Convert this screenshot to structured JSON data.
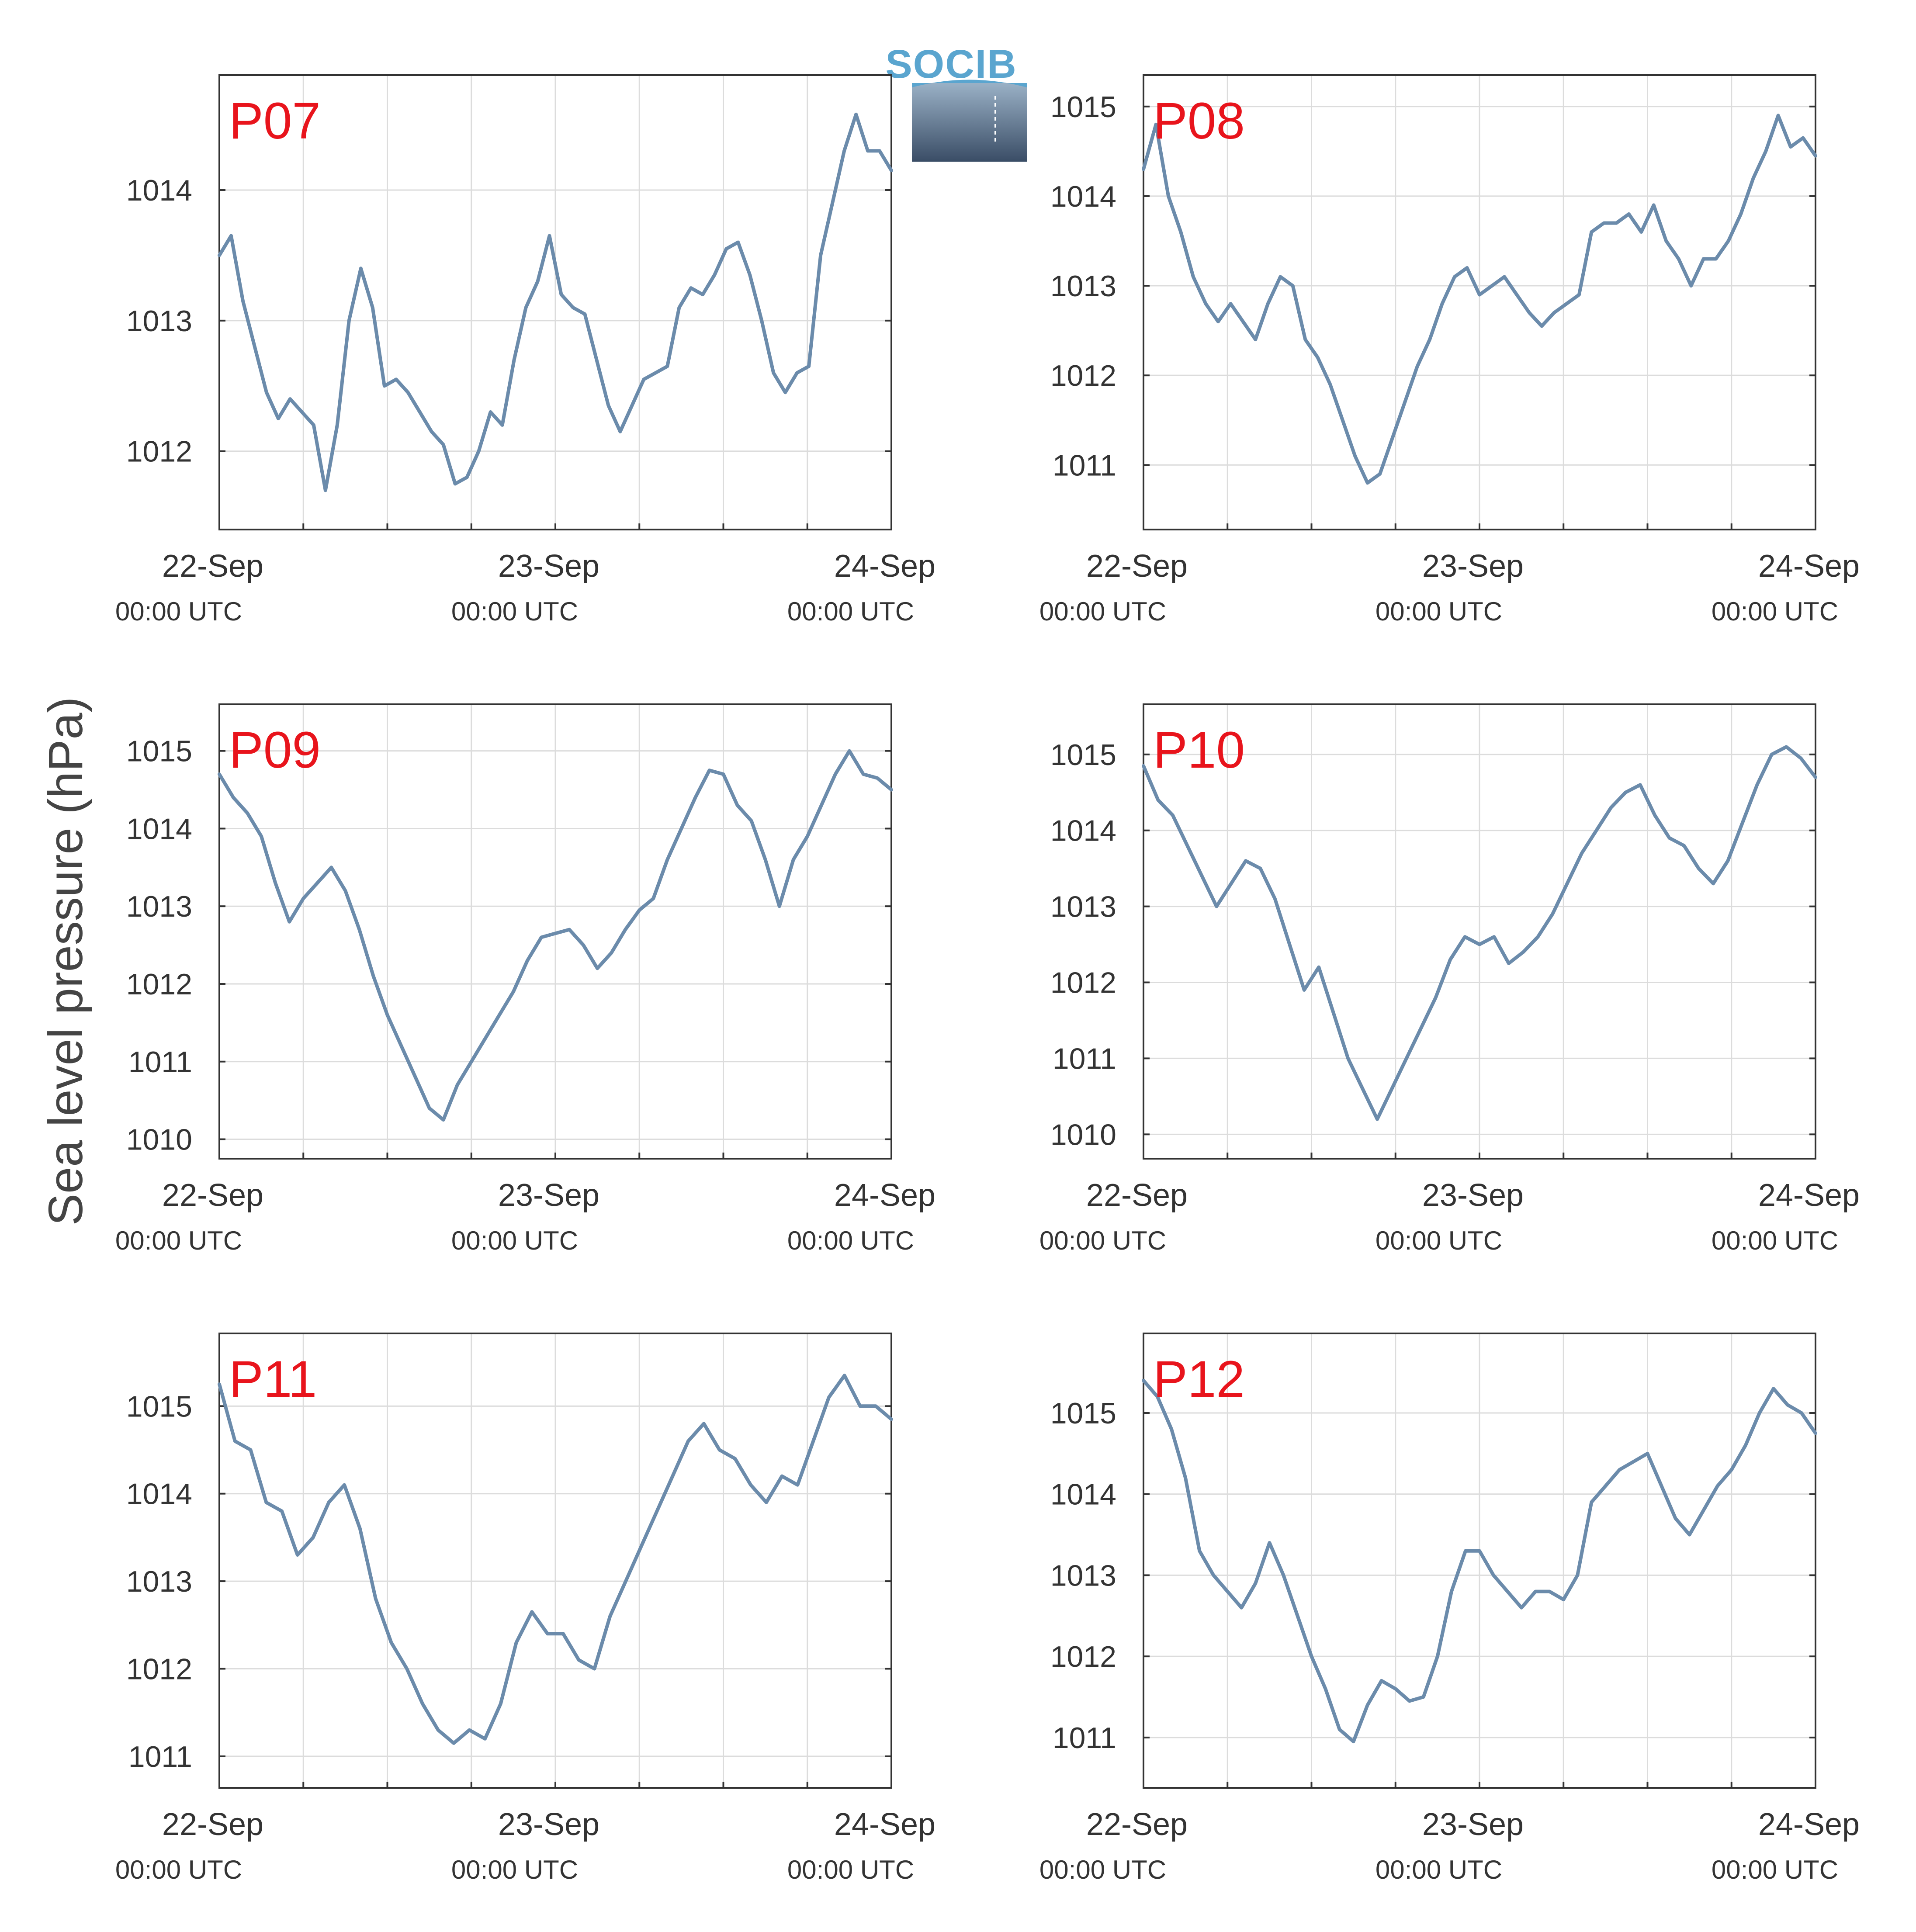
{
  "colors": {
    "series": "#6b8bab",
    "station_label": "#e8141c",
    "grid": "#dcdcdc",
    "axis": "#333333",
    "logo_text": "#5aa5cf",
    "logo_gradient_top": "#9ab1c6",
    "logo_gradient_bottom": "#3a4d66"
  },
  "logo": {
    "text": "SOCIB"
  },
  "ylabel": "Sea level pressure (hPa)",
  "chart_data": [
    {
      "type": "line",
      "station": "P07",
      "xlabels": [
        {
          "date": "22-Sep",
          "time": "00:00 UTC"
        },
        {
          "date": "23-Sep",
          "time": "00:00 UTC"
        },
        {
          "date": "24-Sep",
          "time": "00:00 UTC"
        }
      ],
      "xlim_hours": [
        0,
        48
      ],
      "ylim": [
        1011.4,
        1014.88
      ],
      "yticks": [
        1012,
        1013,
        1014
      ],
      "grid": true,
      "series": [
        {
          "values": [
            1013.5,
            1013.65,
            1013.15,
            1012.8,
            1012.45,
            1012.25,
            1012.4,
            1012.3,
            1012.2,
            1011.7,
            1012.2,
            1013.0,
            1013.4,
            1013.1,
            1012.5,
            1012.55,
            1012.45,
            1012.3,
            1012.15,
            1012.05,
            1011.75,
            1011.8,
            1012.0,
            1012.3,
            1012.2,
            1012.7,
            1013.1,
            1013.3,
            1013.65,
            1013.2,
            1013.1,
            1013.05,
            1012.7,
            1012.35,
            1012.15,
            1012.35,
            1012.55,
            1012.6,
            1012.65,
            1013.1,
            1013.25,
            1013.2,
            1013.35,
            1013.55,
            1013.6,
            1013.35,
            1013.0,
            1012.6,
            1012.45,
            1012.6,
            1012.65,
            1013.5,
            1013.9,
            1014.3,
            1014.58,
            1014.3,
            1014.3,
            1014.15
          ]
        }
      ]
    },
    {
      "type": "line",
      "station": "P08",
      "xlabels": [
        {
          "date": "22-Sep",
          "time": "00:00 UTC"
        },
        {
          "date": "23-Sep",
          "time": "00:00 UTC"
        },
        {
          "date": "24-Sep",
          "time": "00:00 UTC"
        }
      ],
      "xlim_hours": [
        0,
        48
      ],
      "ylim": [
        1010.28,
        1015.35
      ],
      "yticks": [
        1011,
        1012,
        1013,
        1014,
        1015
      ],
      "grid": true,
      "series": [
        {
          "values": [
            1014.3,
            1014.8,
            1014.0,
            1013.6,
            1013.1,
            1012.8,
            1012.6,
            1012.8,
            1012.6,
            1012.4,
            1012.8,
            1013.1,
            1013.0,
            1012.4,
            1012.2,
            1011.9,
            1011.5,
            1011.1,
            1010.8,
            1010.9,
            1011.3,
            1011.7,
            1012.1,
            1012.4,
            1012.8,
            1013.1,
            1013.2,
            1012.9,
            1013.0,
            1013.1,
            1012.9,
            1012.7,
            1012.55,
            1012.7,
            1012.8,
            1012.9,
            1013.6,
            1013.7,
            1013.7,
            1013.8,
            1013.6,
            1013.9,
            1013.5,
            1013.3,
            1013.0,
            1013.3,
            1013.3,
            1013.5,
            1013.8,
            1014.2,
            1014.5,
            1014.9,
            1014.55,
            1014.65,
            1014.45
          ]
        }
      ]
    },
    {
      "type": "line",
      "station": "P09",
      "xlabels": [
        {
          "date": "22-Sep",
          "time": "00:00 UTC"
        },
        {
          "date": "23-Sep",
          "time": "00:00 UTC"
        },
        {
          "date": "24-Sep",
          "time": "00:00 UTC"
        }
      ],
      "xlim_hours": [
        0,
        48
      ],
      "ylim": [
        1009.75,
        1015.6
      ],
      "yticks": [
        1010,
        1011,
        1012,
        1013,
        1014,
        1015
      ],
      "grid": true,
      "series": [
        {
          "values": [
            1014.7,
            1014.4,
            1014.2,
            1013.9,
            1013.3,
            1012.8,
            1013.1,
            1013.3,
            1013.5,
            1013.2,
            1012.7,
            1012.1,
            1011.6,
            1011.2,
            1010.8,
            1010.4,
            1010.25,
            1010.7,
            1011.0,
            1011.3,
            1011.6,
            1011.9,
            1012.3,
            1012.6,
            1012.65,
            1012.7,
            1012.5,
            1012.2,
            1012.4,
            1012.7,
            1012.95,
            1013.1,
            1013.6,
            1014.0,
            1014.4,
            1014.75,
            1014.7,
            1014.3,
            1014.1,
            1013.6,
            1013.0,
            1013.6,
            1013.9,
            1014.3,
            1014.7,
            1015.0,
            1014.7,
            1014.65,
            1014.5
          ]
        }
      ]
    },
    {
      "type": "line",
      "station": "P10",
      "xlabels": [
        {
          "date": "22-Sep",
          "time": "00:00 UTC"
        },
        {
          "date": "23-Sep",
          "time": "00:00 UTC"
        },
        {
          "date": "24-Sep",
          "time": "00:00 UTC"
        }
      ],
      "xlim_hours": [
        0,
        48
      ],
      "ylim": [
        1009.68,
        1015.66
      ],
      "yticks": [
        1010,
        1011,
        1012,
        1013,
        1014,
        1015
      ],
      "grid": true,
      "series": [
        {
          "values": [
            1014.85,
            1014.4,
            1014.2,
            1013.8,
            1013.4,
            1013.0,
            1013.3,
            1013.6,
            1013.5,
            1013.1,
            1012.5,
            1011.9,
            1012.2,
            1011.6,
            1011.0,
            1010.6,
            1010.2,
            1010.6,
            1011.0,
            1011.4,
            1011.8,
            1012.3,
            1012.6,
            1012.5,
            1012.6,
            1012.25,
            1012.4,
            1012.6,
            1012.9,
            1013.3,
            1013.7,
            1014.0,
            1014.3,
            1014.5,
            1014.6,
            1014.2,
            1013.9,
            1013.8,
            1013.5,
            1013.3,
            1013.6,
            1014.1,
            1014.6,
            1015.0,
            1015.1,
            1014.95,
            1014.7
          ]
        }
      ]
    },
    {
      "type": "line",
      "station": "P11",
      "xlabels": [
        {
          "date": "22-Sep",
          "time": "00:00 UTC"
        },
        {
          "date": "23-Sep",
          "time": "00:00 UTC"
        },
        {
          "date": "24-Sep",
          "time": "00:00 UTC"
        }
      ],
      "xlim_hours": [
        0,
        48
      ],
      "ylim": [
        1010.64,
        1015.83
      ],
      "yticks": [
        1011,
        1012,
        1013,
        1014,
        1015
      ],
      "grid": true,
      "series": [
        {
          "values": [
            1015.25,
            1014.6,
            1014.5,
            1013.9,
            1013.8,
            1013.3,
            1013.5,
            1013.9,
            1014.1,
            1013.6,
            1012.8,
            1012.3,
            1012.0,
            1011.6,
            1011.3,
            1011.15,
            1011.3,
            1011.2,
            1011.6,
            1012.3,
            1012.65,
            1012.4,
            1012.4,
            1012.1,
            1012.0,
            1012.6,
            1013.0,
            1013.4,
            1013.8,
            1014.2,
            1014.6,
            1014.8,
            1014.5,
            1014.4,
            1014.1,
            1013.9,
            1014.2,
            1014.1,
            1014.6,
            1015.1,
            1015.35,
            1015.0,
            1015.0,
            1014.85
          ]
        }
      ]
    },
    {
      "type": "line",
      "station": "P12",
      "xlabels": [
        {
          "date": "22-Sep",
          "time": "00:00 UTC"
        },
        {
          "date": "23-Sep",
          "time": "00:00 UTC"
        },
        {
          "date": "24-Sep",
          "time": "00:00 UTC"
        }
      ],
      "xlim_hours": [
        0,
        48
      ],
      "ylim": [
        1010.38,
        1015.98
      ],
      "yticks": [
        1011,
        1012,
        1013,
        1014,
        1015
      ],
      "grid": true,
      "series": [
        {
          "values": [
            1015.4,
            1015.2,
            1014.8,
            1014.2,
            1013.3,
            1013.0,
            1012.8,
            1012.6,
            1012.9,
            1013.4,
            1013.0,
            1012.5,
            1012.0,
            1011.6,
            1011.1,
            1010.95,
            1011.4,
            1011.7,
            1011.6,
            1011.45,
            1011.5,
            1012.0,
            1012.8,
            1013.3,
            1013.3,
            1013.0,
            1012.8,
            1012.6,
            1012.8,
            1012.8,
            1012.7,
            1013.0,
            1013.9,
            1014.1,
            1014.3,
            1014.4,
            1014.5,
            1014.1,
            1013.7,
            1013.5,
            1013.8,
            1014.1,
            1014.3,
            1014.6,
            1015.0,
            1015.3,
            1015.1,
            1015.0,
            1014.75
          ]
        }
      ]
    }
  ]
}
